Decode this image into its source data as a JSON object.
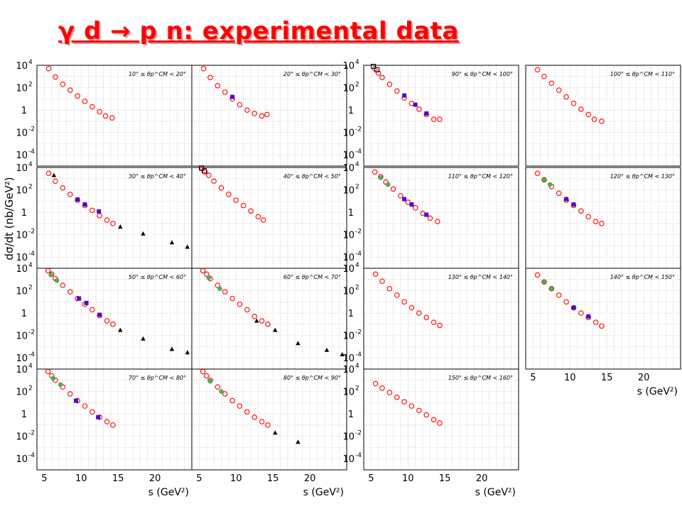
{
  "slide": {
    "title": "γ d → p n: experimental data"
  },
  "axes": {
    "ylabel": "dσ/dt (nb/GeV²)",
    "xlabel": "s (GeV²)",
    "xticks": [
      "5",
      "10",
      "15",
      "20"
    ],
    "yticks": [
      "10^4",
      "10^2",
      "1",
      "10^-2",
      "10^-4"
    ]
  },
  "colors": {
    "red_data": "#ff0000",
    "purple_data": "#4b0ec8",
    "green_data": "#49b849",
    "black_data": "#000000",
    "grid": "#b0b0b0",
    "title": "#ff0000"
  },
  "chart_data": [
    {
      "type": "scatter",
      "label": "10° ≤ θp^CM < 20°",
      "xlim": [
        4,
        25
      ],
      "ylim": [
        "1e-5",
        "1e4"
      ],
      "log_y": true,
      "grid": true,
      "series": [
        {
          "marker": "open-circle",
          "color": "red",
          "x": [
            5.6,
            6.5,
            7.5,
            8.5,
            9.5,
            10.5,
            11.5,
            12.5,
            13.3,
            14.2
          ],
          "y": [
            5000,
            900,
            200,
            60,
            18,
            6,
            2,
            0.7,
            0.3,
            0.2
          ]
        }
      ]
    },
    {
      "type": "scatter",
      "label": "20° ≤ θp^CM < 30°",
      "xlim": [
        4,
        25
      ],
      "ylim": [
        "1e-5",
        "1e4"
      ],
      "log_y": true,
      "grid": true,
      "series": [
        {
          "marker": "open-circle",
          "color": "red",
          "x": [
            5.6,
            6.5,
            7.5,
            8.5,
            9.5,
            10.5,
            11.5,
            12.5,
            13.5,
            14.2
          ],
          "y": [
            5000,
            800,
            150,
            40,
            10,
            3,
            1,
            0.5,
            0.3,
            0.4
          ]
        },
        {
          "marker": "filled-square",
          "color": "purple",
          "x": [
            9.5
          ],
          "y": [
            15
          ]
        }
      ]
    },
    {
      "type": "scatter",
      "label": "30° ≤ θp^CM < 40°",
      "xlim": [
        4,
        25
      ],
      "ylim": [
        "1e-5",
        "1e4"
      ],
      "log_y": true,
      "grid": true,
      "series": [
        {
          "marker": "open-circle",
          "color": "red",
          "x": [
            5.6,
            6.5,
            7.5,
            8.5,
            9.5,
            10.5,
            11.5,
            12.5,
            13.5,
            14.3
          ],
          "y": [
            3000,
            600,
            150,
            40,
            12,
            4,
            1.5,
            0.5,
            0.2,
            0.1
          ]
        },
        {
          "marker": "filled-square",
          "color": "purple",
          "x": [
            9.5,
            10.5,
            12.4
          ],
          "y": [
            14,
            5,
            1.2
          ]
        },
        {
          "marker": "filled-triangle",
          "color": "black",
          "x": [
            6.3,
            15.3,
            18.4,
            22.3,
            24.4
          ],
          "y": [
            2000,
            0.05,
            0.012,
            0.002,
            0.0008
          ]
        }
      ]
    },
    {
      "type": "scatter",
      "label": "40° ≤ θp^CM < 50°",
      "xlim": [
        4,
        25
      ],
      "ylim": [
        "1e-5",
        "1e4"
      ],
      "log_y": true,
      "grid": true,
      "series": [
        {
          "marker": "open-circle",
          "color": "red",
          "x": [
            5.4,
            5.8,
            6.3,
            7,
            8,
            9,
            10,
            11,
            12,
            13,
            13.7
          ],
          "y": [
            8000,
            4000,
            2000,
            600,
            150,
            40,
            12,
            4,
            1.3,
            0.4,
            0.2
          ]
        },
        {
          "marker": "open-square",
          "color": "black",
          "x": [
            5.3,
            5.7
          ],
          "y": [
            9000,
            5000
          ]
        }
      ]
    },
    {
      "type": "scatter",
      "label": "50° ≤ θp^CM < 60°",
      "xlim": [
        4,
        25
      ],
      "ylim": [
        "1e-5",
        "1e4"
      ],
      "log_y": true,
      "grid": true,
      "series": [
        {
          "marker": "open-circle",
          "color": "red",
          "x": [
            5.5,
            6,
            6.5,
            7.5,
            8.5,
            9.5,
            10.5,
            11.5,
            12.5,
            13.5,
            14.3
          ],
          "y": [
            6000,
            3000,
            1200,
            300,
            80,
            20,
            6,
            2,
            0.6,
            0.2,
            0.1
          ]
        },
        {
          "marker": "filled-circle",
          "color": "green",
          "x": [
            5.9,
            6.7
          ],
          "y": [
            2500,
            800
          ]
        },
        {
          "marker": "filled-square",
          "color": "purple",
          "x": [
            9.7,
            10.7,
            12.5
          ],
          "y": [
            20,
            8,
            0.7
          ]
        },
        {
          "marker": "filled-triangle",
          "color": "black",
          "x": [
            15.3,
            18.4,
            22.3,
            24.4
          ],
          "y": [
            0.03,
            0.005,
            0.0006,
            0.0003
          ]
        }
      ]
    },
    {
      "type": "scatter",
      "label": "60° ≤ θp^CM < 70°",
      "xlim": [
        4,
        25
      ],
      "ylim": [
        "1e-5",
        "1e4"
      ],
      "log_y": true,
      "grid": true,
      "series": [
        {
          "marker": "open-circle",
          "color": "red",
          "x": [
            5.5,
            6,
            6.5,
            7.5,
            8.5,
            9.5,
            10.5,
            11.5,
            12.5,
            13.5,
            14.3
          ],
          "y": [
            6000,
            3000,
            1200,
            300,
            80,
            20,
            6,
            2,
            0.5,
            0.2,
            0.1
          ]
        },
        {
          "marker": "filled-circle",
          "color": "green",
          "x": [
            6.3,
            7.8
          ],
          "y": [
            1500,
            150
          ]
        },
        {
          "marker": "filled-triangle",
          "color": "black",
          "x": [
            12.8,
            15.3,
            18.4,
            22.3,
            24.4
          ],
          "y": [
            0.2,
            0.03,
            0.002,
            0.0005,
            0.0002
          ]
        }
      ]
    },
    {
      "type": "scatter",
      "label": "70° ≤ θp^CM < 80°",
      "xlim": [
        4,
        25
      ],
      "ylim": [
        "1e-5",
        "1e4"
      ],
      "log_y": true,
      "grid": true,
      "series": [
        {
          "marker": "open-circle",
          "color": "red",
          "x": [
            5.5,
            6,
            6.5,
            7.5,
            8.5,
            9.5,
            10.5,
            11.5,
            12.5,
            13.5,
            14.3
          ],
          "y": [
            6000,
            2500,
            1000,
            250,
            60,
            15,
            5,
            1.5,
            0.5,
            0.2,
            0.1
          ]
        },
        {
          "marker": "filled-circle",
          "color": "green",
          "x": [
            6.2,
            7.2
          ],
          "y": [
            1500,
            400
          ]
        },
        {
          "marker": "filled-square",
          "color": "purple",
          "x": [
            9.3,
            12.3
          ],
          "y": [
            15,
            0.5
          ]
        }
      ]
    },
    {
      "type": "scatter",
      "label": "80° ≤ θp^CM < 90°",
      "xlim": [
        4,
        25
      ],
      "ylim": [
        "1e-5",
        "1e4"
      ],
      "log_y": true,
      "grid": true,
      "series": [
        {
          "marker": "open-circle",
          "color": "red",
          "x": [
            5.5,
            6,
            6.5,
            7.5,
            8.5,
            9.5,
            10.5,
            11.5,
            12.5,
            13.5,
            14.3
          ],
          "y": [
            6000,
            2500,
            1000,
            250,
            60,
            15,
            5,
            1.5,
            0.5,
            0.2,
            0.1
          ]
        },
        {
          "marker": "filled-circle",
          "color": "green",
          "x": [
            6.5,
            8
          ],
          "y": [
            800,
            100
          ]
        },
        {
          "marker": "filled-triangle",
          "color": "black",
          "x": [
            15.3,
            18.4
          ],
          "y": [
            0.02,
            0.003
          ]
        }
      ]
    },
    {
      "type": "scatter",
      "label": "90° ≤ θp^CM < 100°",
      "xlim": [
        4,
        25
      ],
      "ylim": [
        "1e-5",
        "1e4"
      ],
      "log_y": true,
      "grid": true,
      "series": [
        {
          "marker": "open-circle",
          "color": "red",
          "x": [
            5.5,
            6,
            6.5,
            7.5,
            8.5,
            9.5,
            10.5,
            11.5,
            12.5,
            13.5,
            14.3
          ],
          "y": [
            5000,
            2000,
            800,
            200,
            50,
            12,
            4,
            1.2,
            0.4,
            0.15,
            0.15
          ]
        },
        {
          "marker": "open-square",
          "color": "black",
          "x": [
            5.3,
            5.8
          ],
          "y": [
            8000,
            4000
          ]
        },
        {
          "marker": "filled-square",
          "color": "purple",
          "x": [
            9.5,
            11,
            12.5
          ],
          "y": [
            20,
            3,
            0.5
          ]
        }
      ]
    },
    {
      "type": "scatter",
      "label": "100° ≤ θp^CM < 110°",
      "xlim": [
        4,
        25
      ],
      "ylim": [
        "1e-5",
        "1e4"
      ],
      "log_y": true,
      "grid": true,
      "series": [
        {
          "marker": "open-circle",
          "color": "red",
          "x": [
            5.6,
            6.5,
            7.5,
            8.5,
            9.5,
            10.5,
            11.5,
            12.5,
            13.3,
            14.3
          ],
          "y": [
            4000,
            1000,
            250,
            60,
            15,
            4,
            1.2,
            0.4,
            0.15,
            0.1
          ]
        }
      ]
    },
    {
      "type": "scatter",
      "label": "110° ≤ θp^CM < 120°",
      "xlim": [
        4,
        25
      ],
      "ylim": [
        "1e-5",
        "1e4"
      ],
      "log_y": true,
      "grid": true,
      "series": [
        {
          "marker": "open-circle",
          "color": "red",
          "x": [
            5.5,
            6.3,
            7,
            8,
            9,
            10,
            11,
            12,
            13,
            14
          ],
          "y": [
            4000,
            1500,
            500,
            120,
            30,
            8,
            2.5,
            0.8,
            0.3,
            0.15
          ]
        },
        {
          "marker": "filled-circle",
          "color": "green",
          "x": [
            6.3,
            7.3
          ],
          "y": [
            1200,
            300
          ]
        },
        {
          "marker": "filled-square",
          "color": "purple",
          "x": [
            9.5,
            10.5,
            12.5
          ],
          "y": [
            15,
            5,
            0.6
          ]
        }
      ]
    },
    {
      "type": "scatter",
      "label": "120° ≤ θp^CM < 130°",
      "xlim": [
        4,
        25
      ],
      "ylim": [
        "1e-5",
        "1e4"
      ],
      "log_y": true,
      "grid": true,
      "series": [
        {
          "marker": "open-circle",
          "color": "red",
          "x": [
            5.6,
            6.5,
            7.5,
            8.5,
            9.5,
            10.5,
            11.5,
            12.5,
            13.5,
            14.3
          ],
          "y": [
            3000,
            800,
            200,
            50,
            12,
            4,
            1.3,
            0.4,
            0.15,
            0.1
          ]
        },
        {
          "marker": "filled-circle",
          "color": "green",
          "x": [
            6.5,
            7.3
          ],
          "y": [
            800,
            300
          ]
        },
        {
          "marker": "filled-square",
          "color": "purple",
          "x": [
            9.5,
            10.5
          ],
          "y": [
            15,
            5
          ]
        }
      ]
    },
    {
      "type": "scatter",
      "label": "130° ≤ θp^CM < 140°",
      "xlim": [
        4,
        25
      ],
      "ylim": [
        "1e-5",
        "1e4"
      ],
      "log_y": true,
      "grid": true,
      "series": [
        {
          "marker": "open-circle",
          "color": "red",
          "x": [
            5.6,
            6.5,
            7.5,
            8.5,
            9.5,
            10.5,
            11.5,
            12.5,
            13.5,
            14.3
          ],
          "y": [
            3000,
            700,
            150,
            40,
            10,
            3,
            1,
            0.4,
            0.15,
            0.08
          ]
        }
      ]
    },
    {
      "type": "scatter",
      "label": "140° ≤ θp^CM < 150°",
      "xlim": [
        4,
        25
      ],
      "ylim": [
        "1e-5",
        "1e4"
      ],
      "log_y": true,
      "grid": true,
      "series": [
        {
          "marker": "open-circle",
          "color": "red",
          "x": [
            5.6,
            6.5,
            7.5,
            8.5,
            9.5,
            10.5,
            11.5,
            12.5,
            13.5,
            14.3
          ],
          "y": [
            2500,
            600,
            150,
            40,
            10,
            3,
            1,
            0.4,
            0.15,
            0.07
          ]
        },
        {
          "marker": "filled-circle",
          "color": "green",
          "x": [
            6.5,
            7.5
          ],
          "y": [
            600,
            150
          ]
        },
        {
          "marker": "filled-square",
          "color": "purple",
          "x": [
            10.5,
            12.5
          ],
          "y": [
            3,
            0.5
          ]
        }
      ]
    },
    {
      "type": "scatter",
      "label": "150° ≤ θp^CM < 160°",
      "xlim": [
        4,
        25
      ],
      "ylim": [
        "1e-5",
        "1e4"
      ],
      "log_y": true,
      "grid": true,
      "series": [
        {
          "marker": "open-circle",
          "color": "red",
          "x": [
            5.6,
            6.5,
            7.5,
            8.5,
            9.5,
            10.5,
            11.5,
            12.5,
            13.5,
            14.3
          ],
          "y": [
            500,
            200,
            80,
            30,
            12,
            5,
            2,
            0.8,
            0.3,
            0.15
          ]
        }
      ]
    }
  ]
}
